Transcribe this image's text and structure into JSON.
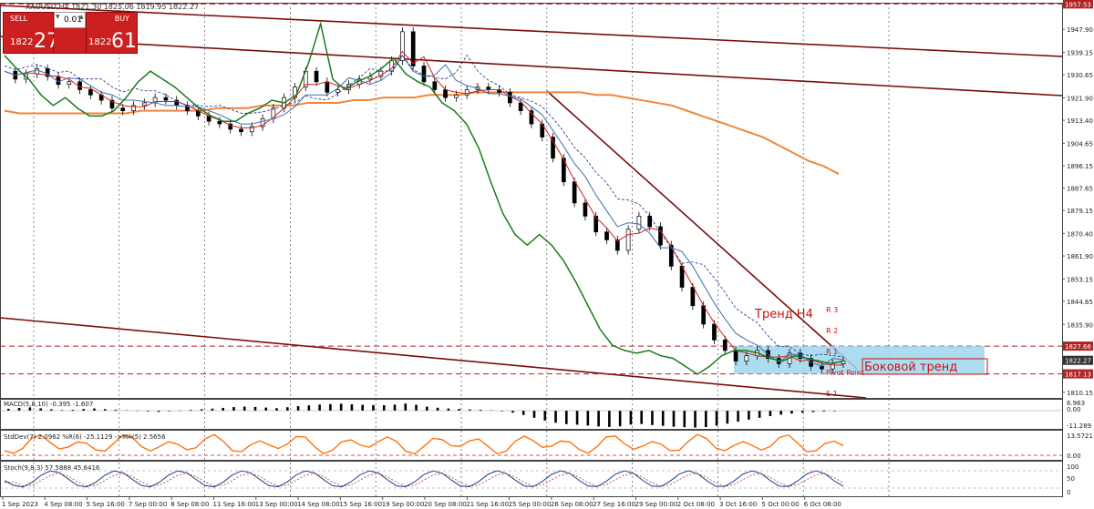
{
  "window": {
    "title": "XAUUSD,H4  1821.30 1825.06 1819.95 1822.27"
  },
  "trade": {
    "sell_label": "SELL",
    "buy_label": "BUY",
    "lot": "0.01",
    "sell_small": "1822",
    "sell_big": "27",
    "buy_small": "1822",
    "buy_big": "61",
    "button_color": "#cc1f1f"
  },
  "chart_data": {
    "type": "candlestick",
    "symbol": "XAUUSD",
    "timeframe": "H4",
    "ohlc": {
      "open": 1821.3,
      "high": 1825.06,
      "low": 1819.95,
      "close": 1822.27
    },
    "x_ticks": [
      "1 Sep 2023",
      "4 Sep 08:00",
      "5 Sep 16:00",
      "7 Sep 00:00",
      "8 Sep 08:00",
      "11 Sep 16:00",
      "13 Sep 00:00",
      "14 Sep 08:00",
      "15 Sep 16:00",
      "19 Sep 00:00",
      "20 Sep 08:00",
      "21 Sep 16:00",
      "25 Sep 00:00",
      "26 Sep 08:00",
      "27 Sep 16:00",
      "29 Sep 00:00",
      "2 Oct 08:00",
      "3 Oct 16:00",
      "5 Oct 00:00",
      "6 Oct 08:00"
    ],
    "y_ticks": [
      "1947.90",
      "1939.15",
      "1930.65",
      "1921.90",
      "1913.40",
      "1904.65",
      "1896.15",
      "1887.65",
      "1879.15",
      "1870.40",
      "1861.90",
      "1853.15",
      "1844.65",
      "1835.90",
      "1810.15"
    ],
    "price_labels": [
      {
        "value": "1957.53",
        "color": "#b22222"
      },
      {
        "value": "1827.66",
        "color": "#b22222"
      },
      {
        "value": "1822.27",
        "color": "#333333"
      },
      {
        "value": "1817.13",
        "color": "#b22222"
      }
    ],
    "y_range": [
      1808,
      1958
    ],
    "price_path": [
      1932,
      1929,
      1931,
      1933,
      1930,
      1927,
      1928,
      1925,
      1923,
      1921,
      1918,
      1917,
      1919,
      1920,
      1922,
      1921,
      1919,
      1917,
      1915,
      1913,
      1912,
      1910,
      1909,
      1911,
      1914,
      1918,
      1922,
      1926,
      1932,
      1928,
      1924,
      1925,
      1927,
      1929,
      1930,
      1932,
      1936,
      1947,
      1934,
      1928,
      1925,
      1922,
      1923,
      1925,
      1926,
      1925,
      1924,
      1920,
      1917,
      1912,
      1907,
      1899,
      1890,
      1882,
      1877,
      1871,
      1868,
      1864,
      1872,
      1877,
      1873,
      1866,
      1858,
      1850,
      1843,
      1836,
      1830,
      1826,
      1822,
      1824,
      1826,
      1823,
      1821,
      1825,
      1823,
      1820,
      1819,
      1821,
      1822
    ],
    "ma200": [
      1917,
      1916,
      1916,
      1916,
      1916,
      1916,
      1916,
      1916,
      1916,
      1917,
      1917,
      1917,
      1917,
      1917,
      1918,
      1918,
      1918,
      1919,
      1919,
      1919,
      1920,
      1920,
      1920,
      1921,
      1921,
      1922,
      1922,
      1922,
      1923,
      1923,
      1923,
      1924,
      1924,
      1924,
      1924,
      1924,
      1924,
      1924,
      1924,
      1923,
      1923,
      1922,
      1921,
      1920,
      1919,
      1917,
      1915,
      1913,
      1911,
      1909,
      1907,
      1904,
      1901,
      1898,
      1896,
      1893
    ],
    "green_line": [
      1938,
      1933,
      1929,
      1923,
      1919,
      1922,
      1918,
      1915,
      1915,
      1917,
      1922,
      1928,
      1932,
      1929,
      1926,
      1922,
      1918,
      1915,
      1913,
      1913,
      1916,
      1918,
      1921,
      1920,
      1923,
      1935,
      1950,
      1929,
      1925,
      1928,
      1930,
      1933,
      1937,
      1931,
      1928,
      1926,
      1920,
      1917,
      1912,
      1903,
      1890,
      1878,
      1870,
      1866,
      1870,
      1866,
      1860,
      1852,
      1843,
      1834,
      1828,
      1826,
      1825,
      1826,
      1824,
      1823,
      1820,
      1817,
      1820,
      1824,
      1826,
      1826,
      1825,
      1823,
      1822,
      1824,
      1823,
      1822,
      1821,
      1822
    ],
    "resistance_channel": {
      "upper_top": [
        [
          0,
          6
        ],
        [
          1165,
          62
        ]
      ],
      "lower_top": [
        [
          0,
          40
        ],
        [
          1165,
          105
        ]
      ],
      "lower_bottom": [
        [
          0,
          349
        ],
        [
          950,
          437
        ]
      ]
    },
    "downtrend": [
      [
        600,
        100
      ],
      [
        940,
        405
      ]
    ],
    "horizontal_levels": [
      1957.53,
      1827.66,
      1817.13
    ],
    "range_box": {
      "from": 805,
      "to": 1080,
      "top": 1827.66,
      "bottom": 1817.13,
      "color": "#9fd6ee"
    },
    "annotations": {
      "trend_label": "Тренд H4",
      "sideways_label": "Боковой тренд",
      "r3": "R 3",
      "r2": "R 2",
      "r1": "R 1",
      "pivot": "Pivot Point",
      "s1": "S 1"
    },
    "indicators": {
      "macd": {
        "label": "MACD(5,8,10) -0.395 -1.607",
        "y_ticks": [
          "6.963",
          "0.00",
          "-11.289"
        ],
        "hist": [
          1.2,
          1.8,
          2.1,
          1.5,
          0.9,
          0.4,
          0.6,
          1.1,
          1.4,
          1.0,
          0.6,
          0.3,
          -0.2,
          -0.5,
          -0.8,
          -0.4,
          0.2,
          0.5,
          0.9,
          1.3,
          1.8,
          2.3,
          2.6,
          2.4,
          2.0,
          1.6,
          2.2,
          2.9,
          3.4,
          3.9,
          4.2,
          4.5,
          4.1,
          3.8,
          3.6,
          3.5,
          3.9,
          4.6,
          3.8,
          2.6,
          1.9,
          1.4,
          1.1,
          0.8,
          0.6,
          0.3,
          -0.4,
          -1.3,
          -2.8,
          -4.6,
          -6.4,
          -7.8,
          -8.7,
          -9.1,
          -9.6,
          -10.2,
          -10.5,
          -10.1,
          -9.0,
          -8.6,
          -9.3,
          -9.8,
          -10.4,
          -10.7,
          -10.9,
          -10.6,
          -9.7,
          -8.4,
          -7.1,
          -5.8,
          -4.6,
          -3.5,
          -2.6,
          -1.9,
          -1.3,
          -0.9,
          -0.6,
          -0.4
        ]
      },
      "stddev": {
        "label": "StdDev(7) 2.0962  %R(6) -25.1129  ->MA(5) 2.5656",
        "y_ticks": [
          "13.5721",
          "0.00"
        ]
      },
      "stoch": {
        "label": "Stoch(9,8,3) 57.5888 45.6416",
        "y_ticks": [
          "100",
          "50",
          "0"
        ]
      }
    }
  }
}
